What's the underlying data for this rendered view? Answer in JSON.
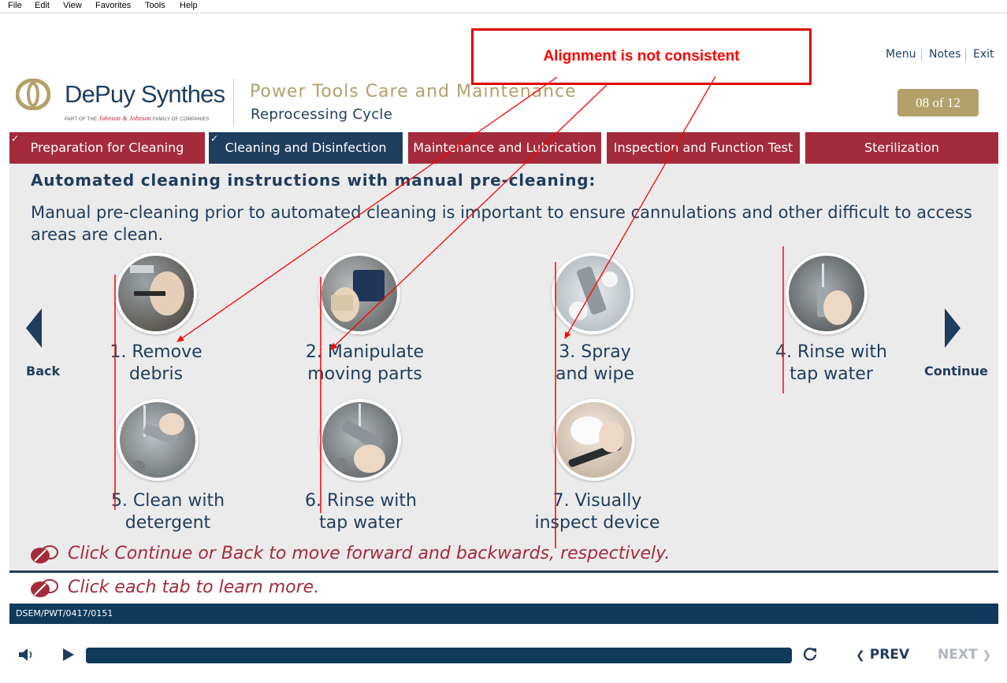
{
  "menubar": {
    "items": [
      "File",
      "Edit",
      "View",
      "Favorites",
      "Tools",
      "Help"
    ]
  },
  "brand": {
    "name": "DePuy Synthes",
    "tagline_pre": "PART OF THE",
    "tagline_brand": "Johnson & Johnson",
    "tagline_post": "FAMILY OF COMPANIES"
  },
  "course": {
    "title": "Power Tools Care and Maintenance",
    "subtitle": "Reprocessing Cycle"
  },
  "topnav": {
    "menu": "Menu",
    "notes": "Notes",
    "exit": "Exit"
  },
  "page_counter": "08 of 12",
  "tabs": [
    {
      "label": "Preparation for Cleaning",
      "completed": true,
      "active": false
    },
    {
      "label": "Cleaning and Disinfection",
      "completed": true,
      "active": true
    },
    {
      "label": "Maintenance and Lubrication",
      "completed": false,
      "active": false
    },
    {
      "label": "Inspection and Function Test",
      "completed": false,
      "active": false
    },
    {
      "label": "Sterilization",
      "completed": false,
      "active": false
    }
  ],
  "content": {
    "heading": "Automated cleaning instructions with manual pre-cleaning:",
    "intro": "Manual pre-cleaning prior to automated cleaning is important to ensure cannulations and other difficult to access areas are clean."
  },
  "steps": [
    {
      "line1": "1. Remove",
      "line2": "debris"
    },
    {
      "line1": "2. Manipulate",
      "line2": "moving parts"
    },
    {
      "line1": "3. Spray",
      "line2": "and wipe"
    },
    {
      "line1": "4. Rinse with",
      "line2": "tap water"
    },
    {
      "line1": "5. Clean with",
      "line2": "detergent"
    },
    {
      "line1": "6. Rinse with",
      "line2": "tap water"
    },
    {
      "line1": "7. Visually",
      "line2": "inspect device"
    }
  ],
  "nav": {
    "back": "Back",
    "continue": "Continue"
  },
  "hints": {
    "continue_back": "Click Continue or Back to move forward and backwards, respectively.",
    "tabs": "Click each tab to learn more."
  },
  "footer_code": "DSEM/PWT/0417/0151",
  "player": {
    "prev": "PREV",
    "next": "NEXT",
    "progress_fraction": 1.0
  },
  "annotation": {
    "text": "Alignment is not consistent"
  },
  "colors": {
    "navy": "#1f3d5d",
    "tab_red": "#a42b3b",
    "gold": "#b3a06a",
    "annotation_red": "#ff0000"
  }
}
